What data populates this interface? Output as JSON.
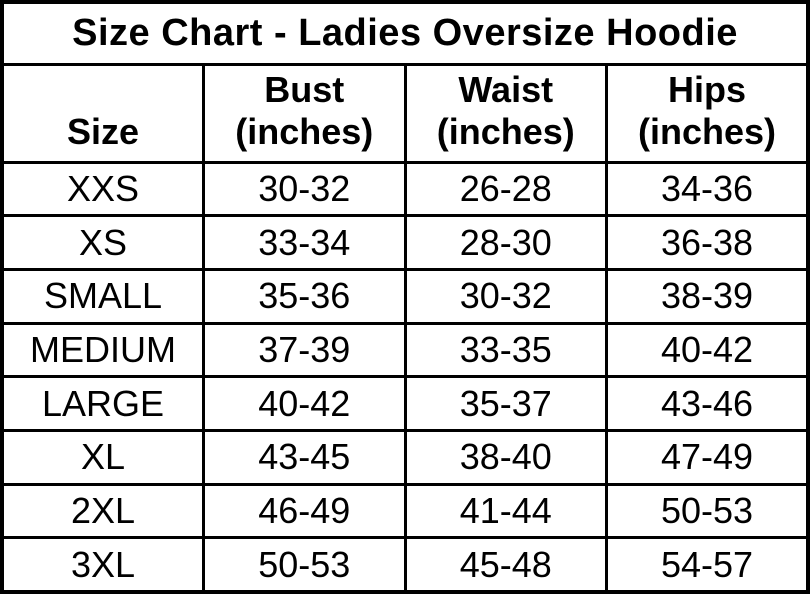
{
  "chart_data": {
    "type": "table",
    "title": "Size Chart - Ladies Oversize Hoodie",
    "columns": [
      {
        "name": "Size",
        "unit": ""
      },
      {
        "name": "Bust",
        "unit": "(inches)"
      },
      {
        "name": "Waist",
        "unit": "(inches)"
      },
      {
        "name": "Hips",
        "unit": "(inches)"
      }
    ],
    "rows": [
      {
        "size": "XXS",
        "bust": "30-32",
        "waist": "26-28",
        "hips": "34-36"
      },
      {
        "size": "XS",
        "bust": "33-34",
        "waist": "28-30",
        "hips": "36-38"
      },
      {
        "size": "SMALL",
        "bust": "35-36",
        "waist": "30-32",
        "hips": "38-39"
      },
      {
        "size": "MEDIUM",
        "bust": "37-39",
        "waist": "33-35",
        "hips": "40-42"
      },
      {
        "size": "LARGE",
        "bust": "40-42",
        "waist": "35-37",
        "hips": "43-46"
      },
      {
        "size": "XL",
        "bust": "43-45",
        "waist": "38-40",
        "hips": "47-49"
      },
      {
        "size": "2XL",
        "bust": "46-49",
        "waist": "41-44",
        "hips": "50-53"
      },
      {
        "size": "3XL",
        "bust": "50-53",
        "waist": "45-48",
        "hips": "54-57"
      }
    ],
    "text_color": "#000000",
    "background_color": "#ffffff",
    "border_color": "#000000",
    "grid": "on",
    "legend": "none"
  }
}
